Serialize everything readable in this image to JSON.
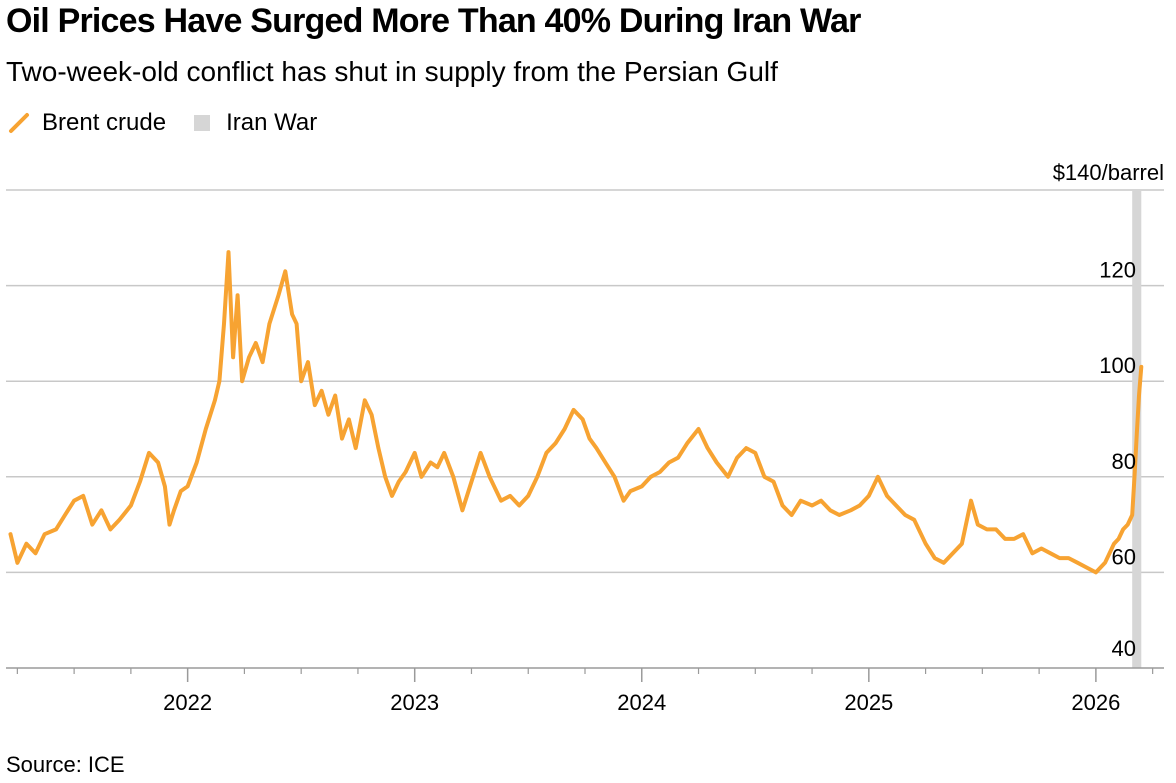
{
  "colors": {
    "line": "#f7a332",
    "band": "#d6d6d6",
    "grid": "#c8c8c8",
    "axis": "#9a9a9a",
    "text": "#000000"
  },
  "legend": {
    "items": [
      {
        "label": "Brent crude",
        "icon": "orange-line-icon"
      },
      {
        "label": "Iran War",
        "icon": "gray-square-icon"
      }
    ]
  },
  "chart_data": {
    "type": "line",
    "title": "Oil Prices Have Surged More Than 40% During Iran War",
    "subtitle": "Two-week-old conflict has shut in supply from the Persian Gulf",
    "source": "Source: ICE",
    "y_unit_label": "$140/barrel",
    "ylim": [
      40,
      140
    ],
    "y_ticks": [
      {
        "value": 140,
        "label": "$140/barrel"
      },
      {
        "value": 120,
        "label": "120"
      },
      {
        "value": 100,
        "label": "100"
      },
      {
        "value": 80,
        "label": "80"
      },
      {
        "value": 60,
        "label": "60"
      },
      {
        "value": 40,
        "label": "40"
      }
    ],
    "xlim": [
      2021.2,
      2026.3
    ],
    "x_ticks": [
      {
        "value": 2022,
        "label": "2022"
      },
      {
        "value": 2023,
        "label": "2023"
      },
      {
        "value": 2024,
        "label": "2024"
      },
      {
        "value": 2025,
        "label": "2025"
      },
      {
        "value": 2026,
        "label": "2026"
      }
    ],
    "minor_ticks": [
      2021.25,
      2021.5,
      2021.75,
      2022.25,
      2022.5,
      2022.75,
      2023.25,
      2023.5,
      2023.75,
      2024.25,
      2024.5,
      2024.75,
      2025.25,
      2025.5,
      2025.75,
      2026.25
    ],
    "shaded_region": {
      "label": "Iran War",
      "start": 2026.16,
      "end": 2026.2
    },
    "series": [
      {
        "name": "Brent crude",
        "points": [
          [
            2021.22,
            68
          ],
          [
            2021.25,
            62
          ],
          [
            2021.29,
            66
          ],
          [
            2021.33,
            64
          ],
          [
            2021.37,
            68
          ],
          [
            2021.42,
            69
          ],
          [
            2021.46,
            72
          ],
          [
            2021.5,
            75
          ],
          [
            2021.54,
            76
          ],
          [
            2021.58,
            70
          ],
          [
            2021.62,
            73
          ],
          [
            2021.66,
            69
          ],
          [
            2021.7,
            71
          ],
          [
            2021.75,
            74
          ],
          [
            2021.79,
            79
          ],
          [
            2021.83,
            85
          ],
          [
            2021.87,
            83
          ],
          [
            2021.9,
            78
          ],
          [
            2021.92,
            70
          ],
          [
            2021.94,
            73
          ],
          [
            2021.97,
            77
          ],
          [
            2022.0,
            78
          ],
          [
            2022.04,
            83
          ],
          [
            2022.08,
            90
          ],
          [
            2022.12,
            96
          ],
          [
            2022.14,
            100
          ],
          [
            2022.16,
            112
          ],
          [
            2022.18,
            127
          ],
          [
            2022.2,
            105
          ],
          [
            2022.22,
            118
          ],
          [
            2022.24,
            100
          ],
          [
            2022.27,
            105
          ],
          [
            2022.3,
            108
          ],
          [
            2022.33,
            104
          ],
          [
            2022.36,
            112
          ],
          [
            2022.4,
            118
          ],
          [
            2022.43,
            123
          ],
          [
            2022.46,
            114
          ],
          [
            2022.48,
            112
          ],
          [
            2022.5,
            100
          ],
          [
            2022.53,
            104
          ],
          [
            2022.56,
            95
          ],
          [
            2022.59,
            98
          ],
          [
            2022.62,
            93
          ],
          [
            2022.65,
            97
          ],
          [
            2022.68,
            88
          ],
          [
            2022.71,
            92
          ],
          [
            2022.74,
            86
          ],
          [
            2022.78,
            96
          ],
          [
            2022.81,
            93
          ],
          [
            2022.84,
            86
          ],
          [
            2022.87,
            80
          ],
          [
            2022.9,
            76
          ],
          [
            2022.93,
            79
          ],
          [
            2022.96,
            81
          ],
          [
            2023.0,
            85
          ],
          [
            2023.03,
            80
          ],
          [
            2023.07,
            83
          ],
          [
            2023.1,
            82
          ],
          [
            2023.13,
            85
          ],
          [
            2023.17,
            80
          ],
          [
            2023.21,
            73
          ],
          [
            2023.25,
            79
          ],
          [
            2023.29,
            85
          ],
          [
            2023.33,
            80
          ],
          [
            2023.38,
            75
          ],
          [
            2023.42,
            76
          ],
          [
            2023.46,
            74
          ],
          [
            2023.5,
            76
          ],
          [
            2023.54,
            80
          ],
          [
            2023.58,
            85
          ],
          [
            2023.62,
            87
          ],
          [
            2023.66,
            90
          ],
          [
            2023.7,
            94
          ],
          [
            2023.74,
            92
          ],
          [
            2023.77,
            88
          ],
          [
            2023.8,
            86
          ],
          [
            2023.84,
            83
          ],
          [
            2023.88,
            80
          ],
          [
            2023.92,
            75
          ],
          [
            2023.95,
            77
          ],
          [
            2024.0,
            78
          ],
          [
            2024.04,
            80
          ],
          [
            2024.08,
            81
          ],
          [
            2024.12,
            83
          ],
          [
            2024.16,
            84
          ],
          [
            2024.2,
            87
          ],
          [
            2024.25,
            90
          ],
          [
            2024.29,
            86
          ],
          [
            2024.33,
            83
          ],
          [
            2024.38,
            80
          ],
          [
            2024.42,
            84
          ],
          [
            2024.46,
            86
          ],
          [
            2024.5,
            85
          ],
          [
            2024.54,
            80
          ],
          [
            2024.58,
            79
          ],
          [
            2024.62,
            74
          ],
          [
            2024.66,
            72
          ],
          [
            2024.7,
            75
          ],
          [
            2024.75,
            74
          ],
          [
            2024.79,
            75
          ],
          [
            2024.83,
            73
          ],
          [
            2024.87,
            72
          ],
          [
            2024.92,
            73
          ],
          [
            2024.96,
            74
          ],
          [
            2025.0,
            76
          ],
          [
            2025.04,
            80
          ],
          [
            2025.08,
            76
          ],
          [
            2025.12,
            74
          ],
          [
            2025.16,
            72
          ],
          [
            2025.2,
            71
          ],
          [
            2025.25,
            66
          ],
          [
            2025.29,
            63
          ],
          [
            2025.33,
            62
          ],
          [
            2025.37,
            64
          ],
          [
            2025.41,
            66
          ],
          [
            2025.45,
            75
          ],
          [
            2025.48,
            70
          ],
          [
            2025.52,
            69
          ],
          [
            2025.56,
            69
          ],
          [
            2025.6,
            67
          ],
          [
            2025.64,
            67
          ],
          [
            2025.68,
            68
          ],
          [
            2025.72,
            64
          ],
          [
            2025.76,
            65
          ],
          [
            2025.8,
            64
          ],
          [
            2025.84,
            63
          ],
          [
            2025.88,
            63
          ],
          [
            2025.92,
            62
          ],
          [
            2025.96,
            61
          ],
          [
            2026.0,
            60
          ],
          [
            2026.02,
            61
          ],
          [
            2026.04,
            62
          ],
          [
            2026.06,
            64
          ],
          [
            2026.08,
            66
          ],
          [
            2026.1,
            67
          ],
          [
            2026.12,
            69
          ],
          [
            2026.14,
            70
          ],
          [
            2026.16,
            72
          ],
          [
            2026.17,
            80
          ],
          [
            2026.18,
            89
          ],
          [
            2026.19,
            97
          ],
          [
            2026.2,
            103
          ]
        ]
      }
    ]
  }
}
